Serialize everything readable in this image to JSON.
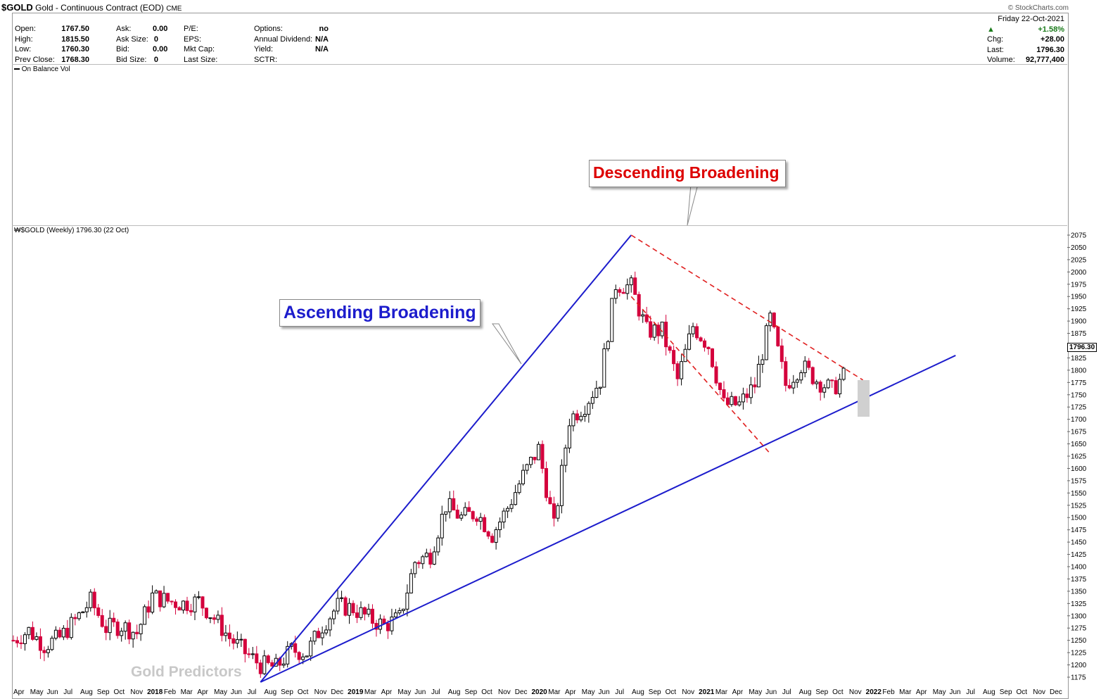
{
  "header": {
    "symbol": "$GOLD",
    "description": "Gold - Continuous Contract (EOD)",
    "exchange": "CME",
    "copyright": "© StockCharts.com"
  },
  "quote": {
    "col1": [
      [
        "Open:",
        "1767.50"
      ],
      [
        "High:",
        "1815.50"
      ],
      [
        "Low:",
        "1760.30"
      ],
      [
        "Prev Close:",
        "1768.30"
      ]
    ],
    "col2": [
      [
        "Ask:",
        "0.00"
      ],
      [
        "Ask Size:",
        "0"
      ],
      [
        "Bid:",
        "0.00"
      ],
      [
        "Bid Size:",
        "0"
      ]
    ],
    "col3": [
      [
        "P/E:",
        ""
      ],
      [
        "EPS:",
        ""
      ],
      [
        "Mkt Cap:",
        ""
      ],
      [
        "Last Size:",
        ""
      ]
    ],
    "col4": [
      [
        "Options:",
        "no"
      ],
      [
        "Annual Dividend:",
        "N/A"
      ],
      [
        "Yield:",
        "N/A"
      ],
      [
        "SCTR:",
        ""
      ]
    ],
    "date_line": "Friday   22-Oct-2021",
    "change_pct": "+1.58%",
    "right": [
      [
        "Chg:",
        "+28.00"
      ],
      [
        "Last:",
        "1796.30"
      ],
      [
        "Volume:",
        "92,777,400"
      ]
    ]
  },
  "indicator_label": "On Balance Vol",
  "price_label": "$GOLD (Weekly) 1796.30 (22 Oct)",
  "last_price_tag": "1796.30",
  "watermark": "Gold Predictors",
  "annotations": {
    "ascending": "Ascending Broadening",
    "descending": "Descending Broadening"
  },
  "colors": {
    "up": "#000000",
    "down": "#d4003c",
    "blue_line": "#1c1ccc",
    "red_line": "#e02020",
    "ascending_text": "#1c1ccc",
    "descending_text": "#dd0000"
  },
  "chart_data": {
    "type": "candlestick",
    "title": "$GOLD (Weekly) 1796.30 (22 Oct)",
    "ylim": [
      1160,
      2085
    ],
    "y_ticks": [
      1175,
      1200,
      1225,
      1250,
      1275,
      1300,
      1325,
      1350,
      1375,
      1400,
      1425,
      1450,
      1475,
      1500,
      1525,
      1550,
      1575,
      1600,
      1625,
      1650,
      1675,
      1700,
      1725,
      1750,
      1775,
      1800,
      1825,
      1850,
      1875,
      1900,
      1925,
      1950,
      1975,
      2000,
      2025,
      2050,
      2075
    ],
    "x_labels": [
      "Apr",
      "May",
      "Jun",
      "Jul",
      "Aug",
      "Sep",
      "Oct",
      "Nov",
      "2018",
      "Feb",
      "Mar",
      "Apr",
      "May",
      "Jun",
      "Jul",
      "Aug",
      "Sep",
      "Oct",
      "Nov",
      "Dec",
      "2019",
      "Mar",
      "Apr",
      "May",
      "Jun",
      "Jul",
      "Aug",
      "Sep",
      "Oct",
      "Nov",
      "Dec",
      "2020",
      "Mar",
      "Apr",
      "May",
      "Jun",
      "Jul",
      "Aug",
      "Sep",
      "Oct",
      "Nov",
      "2021",
      "Mar",
      "Apr",
      "May",
      "Jun",
      "Jul",
      "Aug",
      "Sep",
      "Oct",
      "Nov",
      "2022",
      "Feb",
      "Mar",
      "Apr",
      "May",
      "Jun",
      "Jul",
      "Aug",
      "Sep",
      "Oct",
      "Nov",
      "Dec"
    ],
    "close_path": [
      [
        "2017-04",
        1250
      ],
      [
        "2017-05",
        1270
      ],
      [
        "2017-06",
        1240
      ],
      [
        "2017-07",
        1255
      ],
      [
        "2017-08",
        1290
      ],
      [
        "2017-09",
        1330
      ],
      [
        "2017-10",
        1275
      ],
      [
        "2017-11",
        1280
      ],
      [
        "2017-12",
        1265
      ],
      [
        "2018-01",
        1340
      ],
      [
        "2018-02",
        1330
      ],
      [
        "2018-03",
        1325
      ],
      [
        "2018-04",
        1330
      ],
      [
        "2018-05",
        1295
      ],
      [
        "2018-06",
        1255
      ],
      [
        "2018-07",
        1225
      ],
      [
        "2018-08",
        1200
      ],
      [
        "2018-09",
        1195
      ],
      [
        "2018-10",
        1230
      ],
      [
        "2018-11",
        1225
      ],
      [
        "2018-12",
        1280
      ],
      [
        "2019-01",
        1320
      ],
      [
        "2019-02",
        1315
      ],
      [
        "2019-03",
        1295
      ],
      [
        "2019-04",
        1280
      ],
      [
        "2019-05",
        1295
      ],
      [
        "2019-06",
        1410
      ],
      [
        "2019-07",
        1425
      ],
      [
        "2019-08",
        1525
      ],
      [
        "2019-09",
        1500
      ],
      [
        "2019-10",
        1510
      ],
      [
        "2019-11",
        1465
      ],
      [
        "2019-12",
        1520
      ],
      [
        "2020-01",
        1585
      ],
      [
        "2020-02",
        1640
      ],
      [
        "2020-03",
        1480
      ],
      [
        "2020-04",
        1700
      ],
      [
        "2020-05",
        1730
      ],
      [
        "2020-06",
        1780
      ],
      [
        "2020-07",
        1975
      ],
      [
        "2020-08",
        1970
      ],
      [
        "2020-09",
        1880
      ],
      [
        "2020-10",
        1880
      ],
      [
        "2020-11",
        1780
      ],
      [
        "2020-12",
        1890
      ],
      [
        "2021-01",
        1850
      ],
      [
        "2021-02",
        1730
      ],
      [
        "2021-03",
        1730
      ],
      [
        "2021-04",
        1770
      ],
      [
        "2021-05",
        1905
      ],
      [
        "2021-06",
        1770
      ],
      [
        "2021-07",
        1810
      ],
      [
        "2021-08",
        1780
      ],
      [
        "2021-09",
        1760
      ],
      [
        "2021-10",
        1796.3
      ]
    ],
    "trend_lines": [
      {
        "name": "",
        "style": "solid",
        "color": "blue",
        "from": [
          "2018-08",
          1165
        ],
        "to": [
          "2020-08",
          2075
        ]
      },
      {
        "name": "",
        "style": "solid",
        "color": "blue",
        "from": [
          "2018-08",
          1165
        ],
        "to": [
          "2022-05",
          1830
        ]
      },
      {
        "name": "",
        "style": "dashed",
        "color": "red",
        "from": [
          "2020-08",
          2075
        ],
        "to": [
          "2021-11",
          1780
        ]
      },
      {
        "name": "",
        "style": "dashed",
        "color": "red",
        "from": [
          "2020-08",
          1950
        ],
        "to": [
          "2021-05",
          1630
        ]
      }
    ],
    "indicator_panel": "On Balance Vol",
    "grid": false
  }
}
